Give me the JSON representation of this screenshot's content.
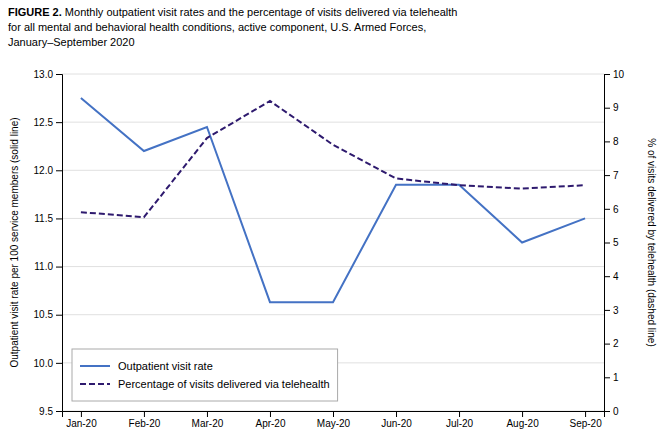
{
  "chart_data": {
    "type": "line",
    "title": "FIGURE 2. Monthly outpatient visit rates and the percentage of visits delivered via telehealth\nfor all mental and behavioral health conditions, active component, U.S. Armed Forces,\nJanuary–September 2020",
    "y_label": "Outpatient visit rate per 100 service members (solid line)",
    "y2_label": "% of visits delivered by telehealth (dashed line)",
    "categories": [
      "Jan-20",
      "Feb-20",
      "Mar-20",
      "Apr-20",
      "May-20",
      "Jun-20",
      "Jul-20",
      "Aug-20",
      "Sep-20"
    ],
    "series": [
      {
        "name": "Outpatient visit rate",
        "color": "#4472C4",
        "line_style": "solid",
        "values": [
          12.75,
          12.2,
          12.45,
          10.63,
          10.63,
          11.85,
          11.85,
          11.25,
          11.5
        ]
      },
      {
        "name": "Percentage of visits delivered via telehealth",
        "color": "#2E1A6E",
        "line_style": "dashed",
        "axis": "y2",
        "values": [
          5.9,
          5.75,
          8.1,
          9.2,
          7.9,
          6.9,
          6.7,
          6.6,
          6.7
        ]
      }
    ],
    "ylim": [
      9.5,
      13.0
    ],
    "yticks": [
      9.5,
      {
        "value": 10.0,
        "label": "10.0"
      },
      10.5,
      {
        "value": 11.0,
        "label": "11.0"
      },
      11.5,
      {
        "value": 12.0,
        "label": "12.0"
      },
      12.5,
      {
        "value": 13.0,
        "label": "13.0"
      }
    ],
    "y2lim": [
      0.0,
      10.0
    ],
    "y2ticks": [
      0,
      1,
      2,
      3,
      4,
      5,
      6,
      7,
      8,
      9,
      10
    ],
    "grid": true,
    "legend": "lower left"
  }
}
